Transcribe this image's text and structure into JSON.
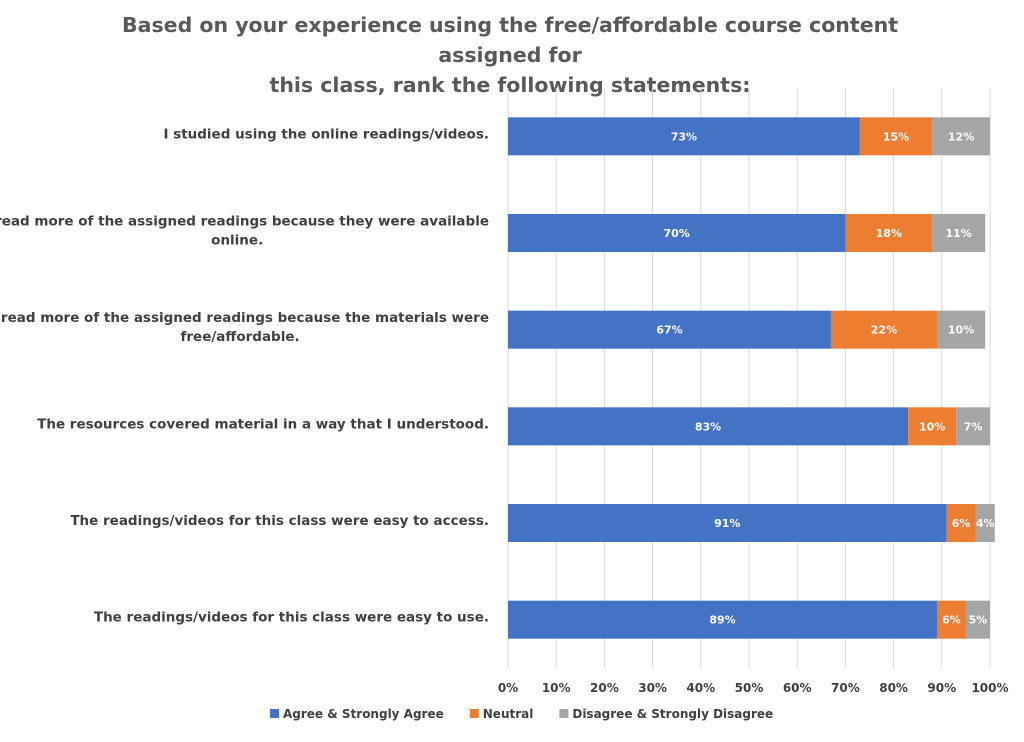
{
  "chart_data": {
    "type": "bar",
    "orientation": "horizontal",
    "stacked": "percent",
    "title_lines": [
      "Based on your experience using the free/affordable course content assigned for",
      "this class, rank the following statements:"
    ],
    "categories": [
      [
        "I studied using the online readings/videos."
      ],
      [
        "I read more of the assigned readings because they were available",
        "online."
      ],
      [
        "I read more of the assigned readings because the materials were",
        "free/affordable."
      ],
      [
        "The resources covered material in a way that I understood."
      ],
      [
        "The readings/videos for this class were easy to access."
      ],
      [
        "The readings/videos for this class were easy to use."
      ]
    ],
    "series": [
      {
        "name": "Agree & Strongly Agree",
        "color": "#4472C4",
        "values": [
          73,
          70,
          67,
          83,
          91,
          89
        ],
        "labels": [
          "73%",
          "70%",
          "67%",
          "83%",
          "91%",
          "89%"
        ]
      },
      {
        "name": "Neutral",
        "color": "#ED7D31",
        "values": [
          15,
          18,
          22,
          10,
          6,
          6
        ],
        "labels": [
          "15%",
          "18%",
          "22%",
          "10%",
          "6%",
          "6%"
        ]
      },
      {
        "name": "Disagree & Strongly Disagree",
        "color": "#A5A5A5",
        "values": [
          12,
          11,
          10,
          7,
          4,
          5
        ],
        "labels": [
          "12%",
          "11%",
          "10%",
          "7%",
          "4%",
          "5%"
        ]
      }
    ],
    "xlim": [
      0,
      100
    ],
    "xticks": [
      "0%",
      "10%",
      "20%",
      "30%",
      "40%",
      "50%",
      "60%",
      "70%",
      "80%",
      "90%",
      "100%"
    ],
    "grid": true,
    "legend_position": "bottom"
  }
}
